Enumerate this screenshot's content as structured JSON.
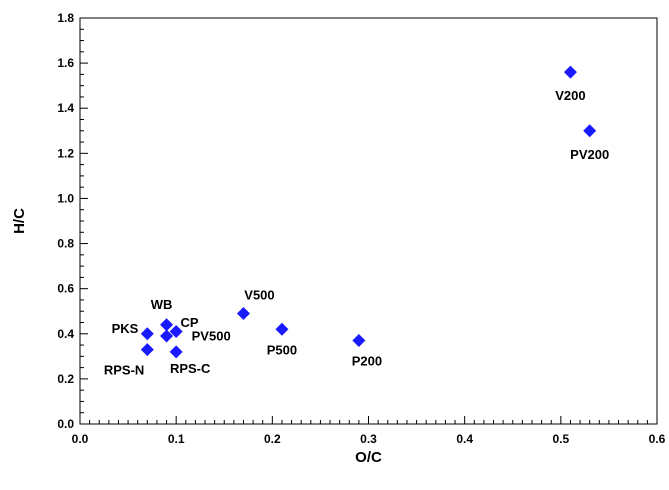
{
  "chart_data": {
    "type": "scatter",
    "xlabel": "O/C",
    "ylabel": "H/C",
    "xlim": [
      0.0,
      0.6
    ],
    "ylim": [
      0.0,
      1.8
    ],
    "x_ticks": [
      "0.0",
      "0.1",
      "0.2",
      "0.3",
      "0.4",
      "0.5",
      "0.6"
    ],
    "y_ticks": [
      "0.0",
      "0.2",
      "0.4",
      "0.6",
      "0.8",
      "1.0",
      "1.2",
      "1.4",
      "1.6",
      "1.8"
    ],
    "grid": false,
    "marker": "diamond",
    "marker_color": "#1a1aff",
    "points": [
      {
        "label": "V200",
        "x": 0.51,
        "y": 1.56
      },
      {
        "label": "PV200",
        "x": 0.53,
        "y": 1.3
      },
      {
        "label": "V500",
        "x": 0.17,
        "y": 0.49
      },
      {
        "label": "P500",
        "x": 0.21,
        "y": 0.42
      },
      {
        "label": "P200",
        "x": 0.29,
        "y": 0.37
      },
      {
        "label": "WB",
        "x": 0.09,
        "y": 0.44
      },
      {
        "label": "CP",
        "x": 0.09,
        "y": 0.39
      },
      {
        "label": "PV500",
        "x": 0.1,
        "y": 0.41
      },
      {
        "label": "PKS",
        "x": 0.07,
        "y": 0.4
      },
      {
        "label": "RPS-N",
        "x": 0.07,
        "y": 0.33
      },
      {
        "label": "RPS-C",
        "x": 0.1,
        "y": 0.32
      }
    ]
  }
}
